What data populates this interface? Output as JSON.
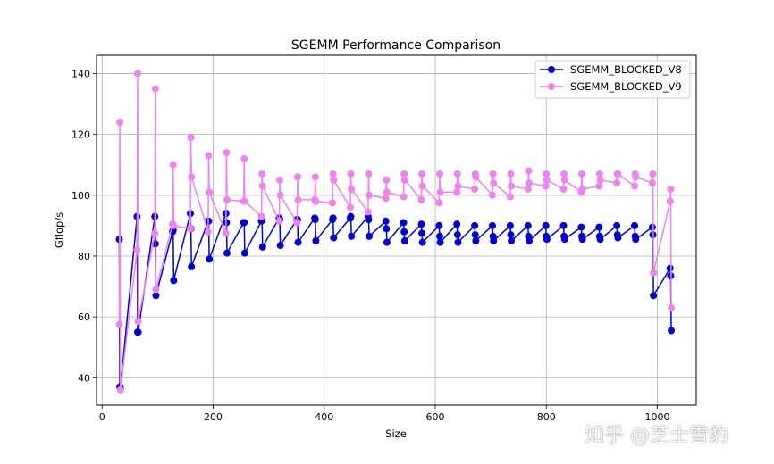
{
  "chart_data": {
    "type": "line",
    "title": "SGEMM Performance Comparison",
    "xlabel": "Size",
    "ylabel": "Gflop/s",
    "xlim": [
      -10,
      1070
    ],
    "ylim": [
      31,
      146
    ],
    "xticks": [
      0,
      200,
      400,
      600,
      800,
      1000
    ],
    "yticks": [
      40,
      60,
      80,
      100,
      120,
      140
    ],
    "grid": true,
    "legend_position": "upper right",
    "series": [
      {
        "name": "SGEMM_BLOCKED_V8",
        "color": "#0000cd",
        "points": [
          [
            31,
            85.5
          ],
          [
            32,
            37
          ],
          [
            33,
            36.5
          ],
          [
            63,
            93
          ],
          [
            64,
            55
          ],
          [
            65,
            55
          ],
          [
            95,
            93
          ],
          [
            96,
            84
          ],
          [
            97,
            67
          ],
          [
            127,
            88
          ],
          [
            128,
            88.5
          ],
          [
            129,
            72
          ],
          [
            159,
            94
          ],
          [
            160,
            89
          ],
          [
            161,
            76.5
          ],
          [
            191,
            91.5
          ],
          [
            192,
            91.5
          ],
          [
            193,
            79
          ],
          [
            223,
            94
          ],
          [
            224,
            91
          ],
          [
            225,
            81
          ],
          [
            255,
            91
          ],
          [
            256,
            91
          ],
          [
            257,
            81
          ],
          [
            287,
            91.5
          ],
          [
            288,
            92
          ],
          [
            289,
            83
          ],
          [
            319,
            92.5
          ],
          [
            320,
            92
          ],
          [
            321,
            83.5
          ],
          [
            351,
            92
          ],
          [
            352,
            92
          ],
          [
            353,
            84.5
          ],
          [
            383,
            92.5
          ],
          [
            384,
            92
          ],
          [
            385,
            85
          ],
          [
            415,
            92
          ],
          [
            416,
            92.5
          ],
          [
            417,
            86
          ],
          [
            447,
            92.5
          ],
          [
            448,
            93
          ],
          [
            449,
            86.5
          ],
          [
            479,
            93
          ],
          [
            480,
            92
          ],
          [
            481,
            86.5
          ],
          [
            511,
            91.5
          ],
          [
            512,
            89
          ],
          [
            513,
            84.5
          ],
          [
            543,
            91
          ],
          [
            544,
            88
          ],
          [
            545,
            85
          ],
          [
            575,
            90.5
          ],
          [
            576,
            87.5
          ],
          [
            577,
            84.5
          ],
          [
            607,
            90
          ],
          [
            608,
            86.5
          ],
          [
            609,
            84.5
          ],
          [
            639,
            90.5
          ],
          [
            640,
            87
          ],
          [
            641,
            84.5
          ],
          [
            671,
            90
          ],
          [
            672,
            87
          ],
          [
            673,
            85
          ],
          [
            703,
            90
          ],
          [
            704,
            86.5
          ],
          [
            705,
            85
          ],
          [
            735,
            90
          ],
          [
            736,
            87
          ],
          [
            737,
            85
          ],
          [
            767,
            90
          ],
          [
            768,
            86.5
          ],
          [
            769,
            85
          ],
          [
            799,
            90
          ],
          [
            800,
            86.5
          ],
          [
            801,
            85.5
          ],
          [
            831,
            90
          ],
          [
            832,
            86.5
          ],
          [
            833,
            85.5
          ],
          [
            863,
            89.5
          ],
          [
            864,
            86.5
          ],
          [
            865,
            85.5
          ],
          [
            895,
            89.5
          ],
          [
            896,
            86.5
          ],
          [
            897,
            85.5
          ],
          [
            927,
            90
          ],
          [
            928,
            87
          ],
          [
            929,
            86
          ],
          [
            959,
            90
          ],
          [
            960,
            86.5
          ],
          [
            961,
            85.5
          ],
          [
            991,
            89.5
          ],
          [
            992,
            87
          ],
          [
            993,
            67
          ],
          [
            1023,
            76
          ],
          [
            1024,
            73.5
          ],
          [
            1025,
            55.5
          ]
        ]
      },
      {
        "name": "SGEMM_BLOCKED_V9",
        "color": "#ee82ee",
        "points": [
          [
            31,
            57.5
          ],
          [
            32,
            124
          ],
          [
            33,
            36
          ],
          [
            63,
            82
          ],
          [
            64,
            140
          ],
          [
            65,
            58.5
          ],
          [
            95,
            87.5
          ],
          [
            96,
            135
          ],
          [
            97,
            69
          ],
          [
            127,
            90.5
          ],
          [
            128,
            110
          ],
          [
            129,
            90
          ],
          [
            159,
            89
          ],
          [
            160,
            119
          ],
          [
            161,
            106
          ],
          [
            191,
            88
          ],
          [
            192,
            113
          ],
          [
            193,
            101
          ],
          [
            223,
            87.5
          ],
          [
            224,
            114
          ],
          [
            225,
            98.5
          ],
          [
            255,
            98
          ],
          [
            256,
            112
          ],
          [
            257,
            98
          ],
          [
            287,
            93
          ],
          [
            288,
            107
          ],
          [
            289,
            103
          ],
          [
            319,
            91.5
          ],
          [
            320,
            105
          ],
          [
            321,
            100
          ],
          [
            351,
            91
          ],
          [
            352,
            106
          ],
          [
            353,
            98.5
          ],
          [
            383,
            98.5
          ],
          [
            384,
            106
          ],
          [
            385,
            98
          ],
          [
            415,
            97.5
          ],
          [
            416,
            107
          ],
          [
            417,
            105
          ],
          [
            447,
            96
          ],
          [
            448,
            107
          ],
          [
            449,
            102
          ],
          [
            479,
            94.5
          ],
          [
            480,
            107
          ],
          [
            481,
            100
          ],
          [
            511,
            99
          ],
          [
            512,
            105
          ],
          [
            513,
            101
          ],
          [
            543,
            99.5
          ],
          [
            544,
            107
          ],
          [
            545,
            105
          ],
          [
            575,
            98.5
          ],
          [
            576,
            107
          ],
          [
            577,
            103
          ],
          [
            607,
            97.5
          ],
          [
            608,
            107
          ],
          [
            609,
            101
          ],
          [
            639,
            101
          ],
          [
            640,
            107
          ],
          [
            641,
            103
          ],
          [
            671,
            102
          ],
          [
            672,
            107
          ],
          [
            673,
            106
          ],
          [
            703,
            100
          ],
          [
            704,
            107
          ],
          [
            705,
            104
          ],
          [
            735,
            99.5
          ],
          [
            736,
            107
          ],
          [
            737,
            103
          ],
          [
            767,
            102
          ],
          [
            768,
            108
          ],
          [
            769,
            104
          ],
          [
            799,
            103
          ],
          [
            800,
            107
          ],
          [
            801,
            105
          ],
          [
            831,
            102
          ],
          [
            832,
            107
          ],
          [
            833,
            105
          ],
          [
            863,
            101
          ],
          [
            864,
            107
          ],
          [
            865,
            102
          ],
          [
            895,
            103
          ],
          [
            896,
            107
          ],
          [
            897,
            105
          ],
          [
            927,
            104
          ],
          [
            928,
            107
          ],
          [
            929,
            107
          ],
          [
            959,
            103
          ],
          [
            960,
            107
          ],
          [
            961,
            106
          ],
          [
            991,
            104
          ],
          [
            992,
            107
          ],
          [
            993,
            74.5
          ],
          [
            1023,
            98
          ],
          [
            1024,
            102
          ],
          [
            1025,
            63
          ]
        ]
      }
    ]
  },
  "watermark": {
    "text": "知乎 @芝士雪豹"
  }
}
